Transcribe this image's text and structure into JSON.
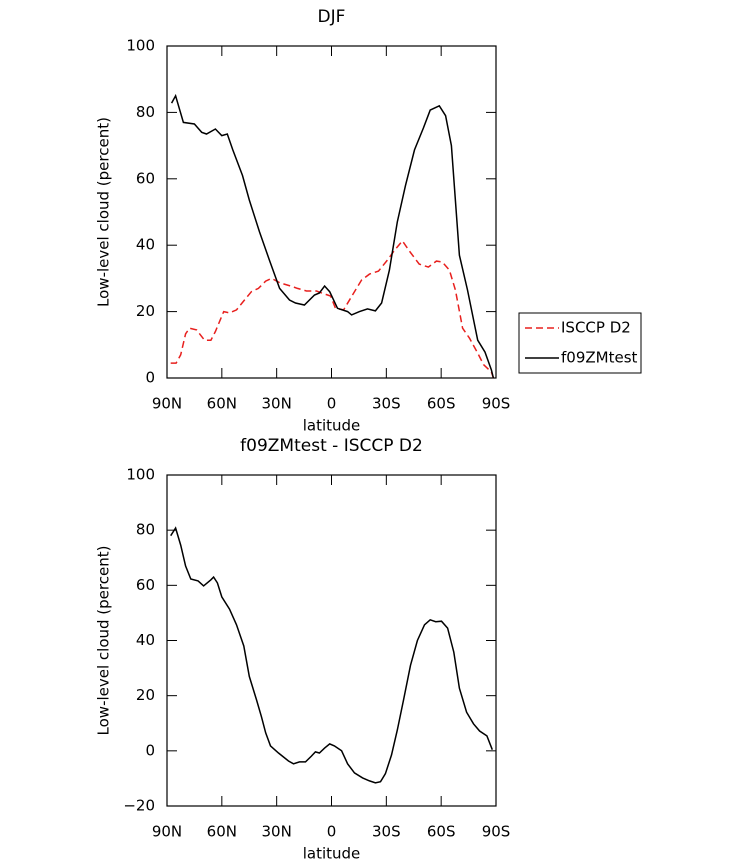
{
  "chart_data": [
    {
      "type": "line",
      "title": "DJF",
      "x_label": "latitude",
      "y_label": "Low-level cloud (percent)",
      "xlim": [
        90,
        -90
      ],
      "ylim": [
        0,
        100
      ],
      "xticks": [
        {
          "value": 90,
          "label": "90N"
        },
        {
          "value": 60,
          "label": "60N"
        },
        {
          "value": 30,
          "label": "30N"
        },
        0,
        {
          "value": -30,
          "label": "30S"
        },
        {
          "value": -60,
          "label": "60S"
        },
        {
          "value": -90,
          "label": "90S"
        }
      ],
      "yticks": [
        0,
        20,
        40,
        60,
        80,
        100
      ],
      "legend": "right",
      "series": [
        {
          "name": "ISCCP D2",
          "color": "#e8201e",
          "style": "dashed",
          "x": [
            88,
            85,
            82.5,
            79.8,
            77.7,
            73.8,
            69.5,
            66,
            63.5,
            59,
            55.8,
            52,
            47.6,
            43.8,
            40,
            36,
            32.8,
            28,
            22.4,
            18.6,
            13.7,
            8.2,
            3.8,
            0.5,
            -2.2,
            -6.6,
            -11.5,
            -16.4,
            -20.8,
            -25.7,
            -30.6,
            -34.5,
            -38.8,
            -42.7,
            -48,
            -53,
            -57.4,
            -60.7,
            -64.5,
            -67.8,
            -71.7,
            -75.5,
            -80,
            -83.2,
            -87.5,
            -88.6
          ],
          "values": [
            4.5,
            4.5,
            7,
            13.3,
            15,
            14.5,
            11.4,
            11.4,
            14,
            20,
            19.6,
            20.5,
            23.5,
            26,
            27,
            29.2,
            30,
            28.6,
            27.7,
            27,
            26.2,
            26.2,
            25.3,
            24.7,
            21,
            20.5,
            25,
            29.5,
            31.3,
            32.2,
            35.5,
            38.5,
            41.3,
            38.2,
            34.3,
            33.4,
            35.2,
            34.9,
            32.5,
            26.5,
            15,
            12,
            7.5,
            4,
            1.8,
            0
          ]
        },
        {
          "name": "f09ZMtest",
          "color": "#000000",
          "style": "solid",
          "x": [
            87.5,
            85.3,
            81,
            75,
            71,
            68.4,
            63.5,
            60,
            57,
            54,
            48.7,
            45,
            39.4,
            34,
            28.4,
            23,
            19.7,
            14.8,
            9.3,
            6.6,
            3.8,
            1,
            -3.3,
            -8.8,
            -11,
            -15.3,
            -19.7,
            -24,
            -27.4,
            -31.7,
            -36,
            -40.5,
            -45.4,
            -50.3,
            -54,
            -59,
            -62.4,
            -65.6,
            -70,
            -74.4,
            -80,
            -84,
            -87.5,
            -88.6
          ],
          "values": [
            82.8,
            85,
            77,
            76.5,
            74,
            73.5,
            75,
            73,
            73.5,
            68.7,
            61,
            53.6,
            44,
            35.5,
            27,
            23.5,
            22.6,
            22,
            25,
            25.6,
            27.7,
            26,
            21,
            20,
            19,
            20,
            20.8,
            20.2,
            22.6,
            32.5,
            47,
            58,
            68.7,
            75.3,
            80.7,
            82,
            79,
            70,
            37,
            26.5,
            11.4,
            7.8,
            2.4,
            0
          ]
        }
      ]
    },
    {
      "type": "line",
      "title": "f09ZMtest - ISCCP D2",
      "x_label": "latitude",
      "y_label": "Low-level cloud (percent)",
      "xlim": [
        90,
        -90
      ],
      "ylim": [
        -20,
        100
      ],
      "xticks": [
        {
          "value": 90,
          "label": "90N"
        },
        {
          "value": 60,
          "label": "60N"
        },
        {
          "value": 30,
          "label": "30N"
        },
        0,
        {
          "value": -30,
          "label": "30S"
        },
        {
          "value": -60,
          "label": "60S"
        },
        {
          "value": -90,
          "label": "90S"
        }
      ],
      "yticks": [
        {
          "value": -20,
          "label": "−20"
        },
        0,
        20,
        40,
        60,
        80,
        100
      ],
      "series": [
        {
          "color": "#000000",
          "style": "solid",
          "x": [
            88,
            85.3,
            82.5,
            79.8,
            77,
            73,
            70,
            66,
            64.5,
            62.4,
            60,
            55.8,
            52,
            48,
            45,
            41,
            38.3,
            36,
            33.4,
            29,
            23.5,
            20.8,
            17.5,
            14.2,
            11,
            8.8,
            6.6,
            3.8,
            1,
            -1.6,
            -5.5,
            -8.8,
            -12.6,
            -17,
            -20.8,
            -24,
            -26.8,
            -29.5,
            -32.8,
            -36,
            -39.4,
            -43.2,
            -47,
            -50.9,
            -54,
            -57,
            -60.2,
            -63.5,
            -66.9,
            -70,
            -73.9,
            -77.7,
            -81,
            -85,
            -88
          ],
          "values": [
            78,
            80.8,
            74.6,
            67,
            62.3,
            61.6,
            59.8,
            62,
            63,
            60.9,
            55.8,
            51.4,
            45.7,
            38,
            27,
            18.4,
            12.3,
            6.5,
            1.8,
            -0.8,
            -3.7,
            -4.7,
            -4,
            -4,
            -1.9,
            -0.4,
            -0.8,
            1,
            2.5,
            1.8,
            0,
            -4.7,
            -8,
            -9.8,
            -10.9,
            -11.6,
            -11.2,
            -8.3,
            -1.5,
            7.5,
            18.4,
            31,
            40,
            45.7,
            47.5,
            46.8,
            47,
            44.5,
            35.8,
            22.7,
            14,
            9.8,
            7.2,
            5.4,
            0.4
          ]
        }
      ]
    }
  ]
}
